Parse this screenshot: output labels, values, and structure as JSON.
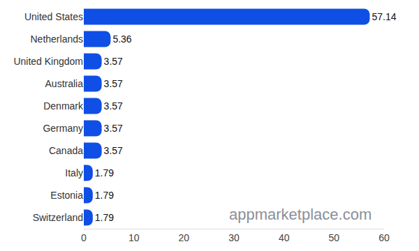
{
  "chart_data": {
    "type": "bar",
    "orientation": "horizontal",
    "categories": [
      "United States",
      "Netherlands",
      "United Kingdom",
      "Australia",
      "Denmark",
      "Germany",
      "Canada",
      "Italy",
      "Estonia",
      "Switzerland"
    ],
    "values": [
      57.14,
      5.36,
      3.57,
      3.57,
      3.57,
      3.57,
      3.57,
      1.79,
      1.79,
      1.79
    ],
    "color": "#0f4fe6",
    "xlim": [
      0,
      60
    ],
    "xticks": [
      0,
      10,
      20,
      30,
      40,
      50,
      60
    ],
    "grid": false,
    "data_labels": true,
    "annotations": [
      "appmarketplace.com"
    ]
  }
}
